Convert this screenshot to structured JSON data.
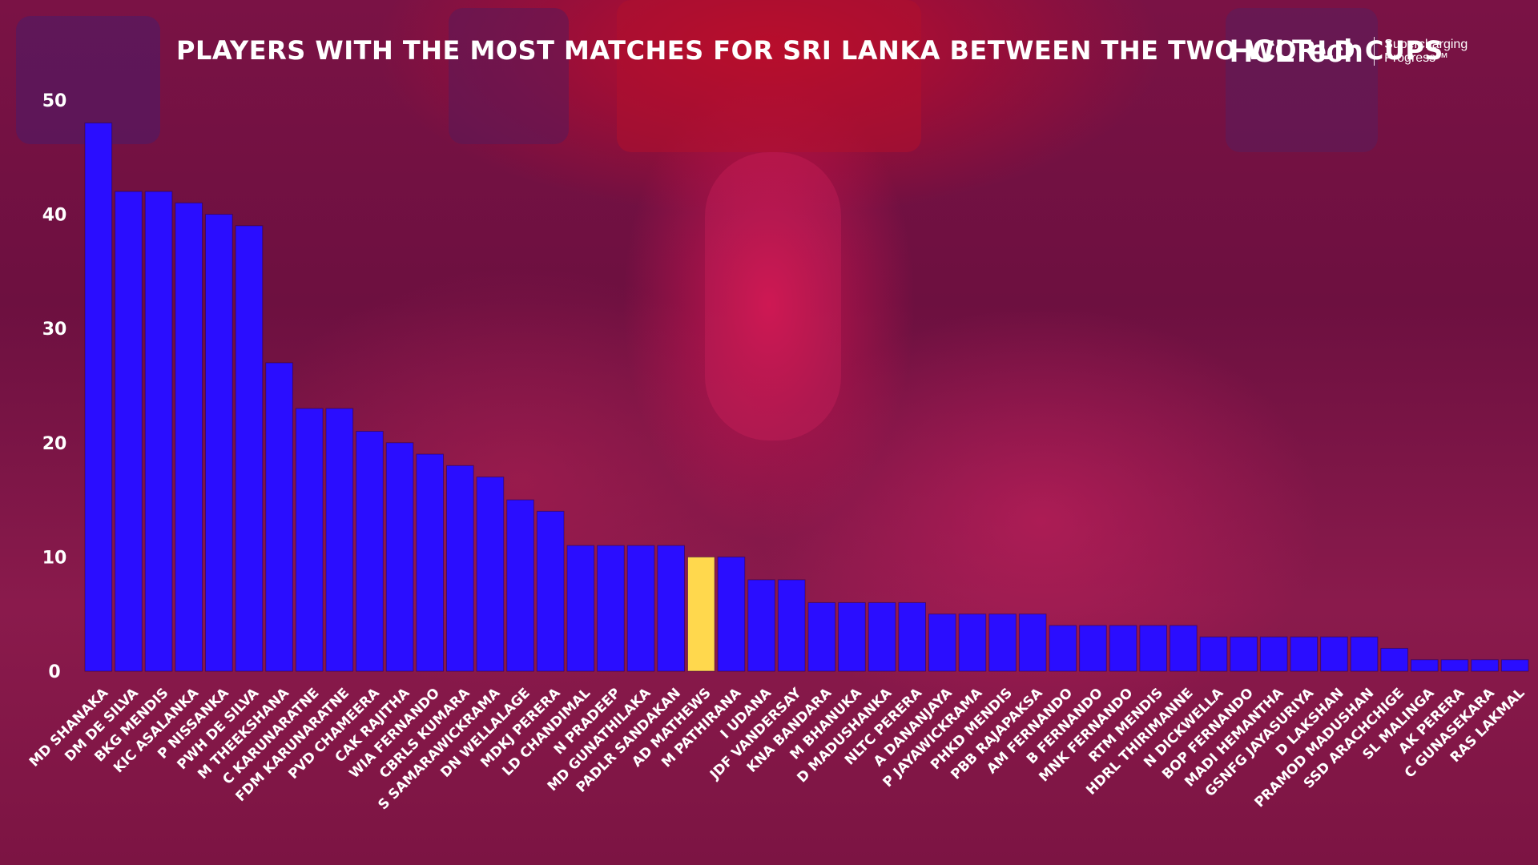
{
  "header": {
    "title": "PLAYERS WITH THE MOST MATCHES FOR SRI LANKA BETWEEN THE TWO WORLD CUPS",
    "logo_text": "HCLTech",
    "logo_tagline_line1": "Supercharging",
    "logo_tagline_line2": "Progress™"
  },
  "colors": {
    "bar": "#2a0dff",
    "highlight": "#ffd84d",
    "text": "#ffffff"
  },
  "chart_data": {
    "type": "bar",
    "title": "PLAYERS WITH THE MOST MATCHES FOR SRI LANKA BETWEEN THE TWO WORLD CUPS",
    "xlabel": "",
    "ylabel": "",
    "ylim": [
      0,
      50
    ],
    "yticks": [
      0,
      10,
      20,
      30,
      40,
      50
    ],
    "grid": false,
    "highlighted_category": "AD MATHEWS",
    "categories": [
      "MD SHANAKA",
      "DM DE SILVA",
      "BKG MENDIS",
      "KIC ASALANKA",
      "P NISSANKA",
      "PWH DE SILVA",
      "M THEEKSHANA",
      "C KARUNARATNE",
      "FDM KARUNARATNE",
      "PVD CHAMEERA",
      "CAK RAJITHA",
      "WIA FERNANDO",
      "CBRLS KUMARA",
      "S SAMARAWICKRAMA",
      "DN WELLALAGE",
      "MDKJ PERERA",
      "LD CHANDIMAL",
      "N PRADEEP",
      "MD GUNATHILAKA",
      "PADLR SANDAKAN",
      "AD MATHEWS",
      "M PATHIRANA",
      "I UDANA",
      "JDF VANDERSAY",
      "KNA BANDARA",
      "M BHANUKA",
      "D MADUSHANKA",
      "NLTC PERERA",
      "A DANANJAYA",
      "P JAYAWICKRAMA",
      "PHKD MENDIS",
      "PBB RAJAPAKSA",
      "AM FERNANDO",
      "B FERNANDO",
      "MNK FERNANDO",
      "RTM MENDIS",
      "HDRL THIRIMANNE",
      "N DICKWELLA",
      "BOP FERNANDO",
      "MADI HEMANTHA",
      "GSNFG JAYASURIYA",
      "D LAKSHAN",
      "PRAMOD MADUSHAN",
      "SSD ARACHCHIGE",
      "SL MALINGA",
      "AK PERERA",
      "C GUNASEKARA",
      "RAS LAKMAL"
    ],
    "values": [
      48,
      42,
      42,
      41,
      40,
      39,
      27,
      23,
      23,
      21,
      20,
      19,
      18,
      17,
      15,
      14,
      11,
      11,
      11,
      11,
      10,
      10,
      8,
      8,
      6,
      6,
      6,
      6,
      5,
      5,
      5,
      5,
      4,
      4,
      4,
      4,
      4,
      3,
      3,
      3,
      3,
      3,
      3,
      2,
      1,
      1,
      1,
      1
    ]
  }
}
